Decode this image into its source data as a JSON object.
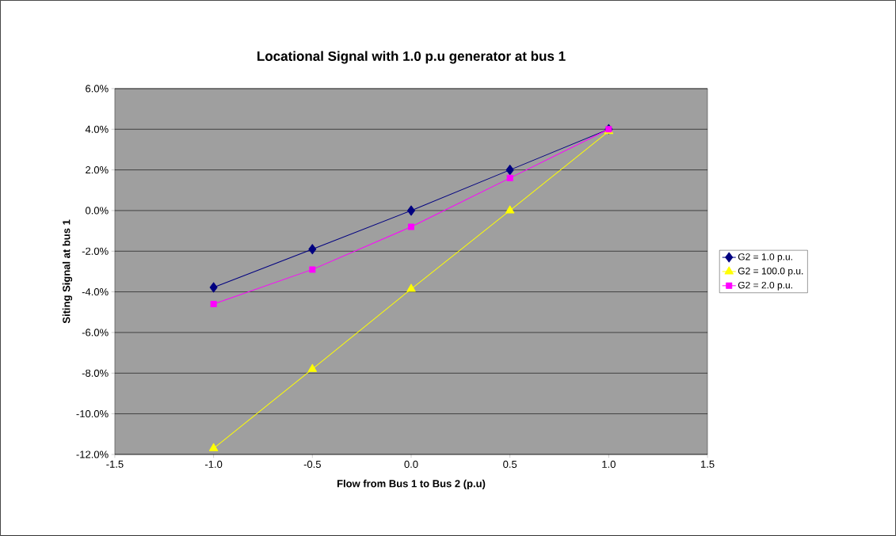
{
  "chart_data": {
    "type": "line",
    "title": "Locational Signal with 1.0 p.u generator at bus 1",
    "xlabel": "Flow from Bus 1 to Bus 2 (p.u)",
    "ylabel": "Siting Signal at bus 1",
    "x": [
      -1.0,
      -0.5,
      0.0,
      0.5,
      1.0
    ],
    "series": [
      {
        "name": "G2 = 1.0 p.u.",
        "color": "#000080",
        "marker": "diamond",
        "values": [
          -3.78,
          -1.9,
          0.0,
          2.0,
          4.0
        ]
      },
      {
        "name": "G2 = 100.0 p.u.",
        "color": "#ffff00",
        "marker": "triangle",
        "values": [
          -11.7,
          -7.8,
          -3.86,
          0.0,
          3.9
        ]
      },
      {
        "name": "G2 = 2.0 p.u.",
        "color": "#ff00ff",
        "marker": "square",
        "values": [
          -4.6,
          -2.9,
          -0.8,
          1.6,
          4.0
        ]
      }
    ],
    "xlim": [
      -1.5,
      1.5
    ],
    "xticks": [
      {
        "value": -1.5,
        "label": "-1.5"
      },
      {
        "value": -1.0,
        "label": "-1.0"
      },
      {
        "value": -0.5,
        "label": "-0.5"
      },
      {
        "value": 0,
        "label": "0.0"
      },
      {
        "value": 0.5,
        "label": "0.5"
      },
      {
        "value": 1.0,
        "label": "1.0"
      },
      {
        "value": 1.5,
        "label": "1.5"
      }
    ],
    "ylim": [
      -12,
      6
    ],
    "yticks": [
      {
        "value": -12,
        "label": "-12.0%"
      },
      {
        "value": -10,
        "label": "-10.0%"
      },
      {
        "value": -8,
        "label": "-8.0%"
      },
      {
        "value": -6,
        "label": "-6.0%"
      },
      {
        "value": -4,
        "label": "-4.0%"
      },
      {
        "value": -2,
        "label": "-2.0%"
      },
      {
        "value": 0,
        "label": "0.0%"
      },
      {
        "value": 2,
        "label": "2.0%"
      },
      {
        "value": 4,
        "label": "4.0%"
      },
      {
        "value": 6,
        "label": "6.0%"
      }
    ],
    "grid": "y",
    "legend": "right",
    "line_style": "solid"
  }
}
